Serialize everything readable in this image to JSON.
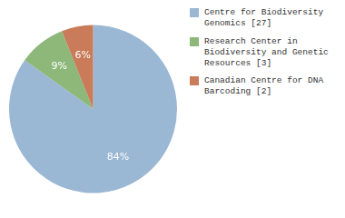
{
  "chart_data": {
    "type": "pie",
    "categories": [
      "Centre for Biodiversity\nGenomics [27]",
      "Research Center in\nBiodiversity and Genetic\nResources [3]",
      "Canadian Centre for DNA\nBarcoding [2]"
    ],
    "values": [
      84,
      9,
      6
    ],
    "value_labels": [
      "84%",
      "9%",
      "6%"
    ],
    "colors": [
      "#9ab7d3",
      "#8db87a",
      "#c97b5a"
    ],
    "data_labels": true,
    "legend": "right"
  }
}
